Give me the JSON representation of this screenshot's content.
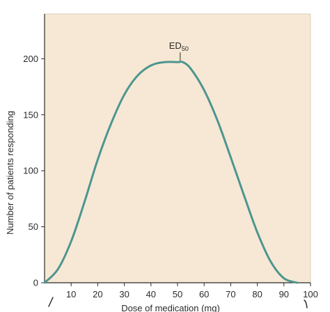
{
  "chart_data": {
    "type": "line",
    "title": "",
    "xlabel": "Dose of medication (mg)",
    "ylabel": "Number of patients responding",
    "xlim": [
      0,
      100
    ],
    "ylim": [
      0,
      240
    ],
    "x_ticks": [
      10,
      20,
      30,
      40,
      50,
      60,
      70,
      80,
      90,
      100
    ],
    "y_ticks": [
      0,
      50,
      100,
      150,
      200
    ],
    "grid": false,
    "colors": {
      "plot_bg": "#f6e8d4",
      "line": "#4d9590",
      "axis": "#2a2a2a"
    },
    "series": [
      {
        "x": [
          0,
          5,
          10,
          15,
          20,
          25,
          30,
          35,
          40,
          45,
          50,
          52,
          55,
          60,
          65,
          70,
          75,
          80,
          85,
          90,
          95
        ],
        "y": [
          0,
          12,
          37,
          72,
          110,
          142,
          168,
          185,
          194,
          197,
          197,
          197,
          191,
          172,
          145,
          112,
          78,
          45,
          19,
          4,
          0
        ]
      }
    ],
    "annotations": [
      {
        "text": "ED",
        "subscript": "50",
        "x": 51,
        "y": 197
      }
    ]
  }
}
